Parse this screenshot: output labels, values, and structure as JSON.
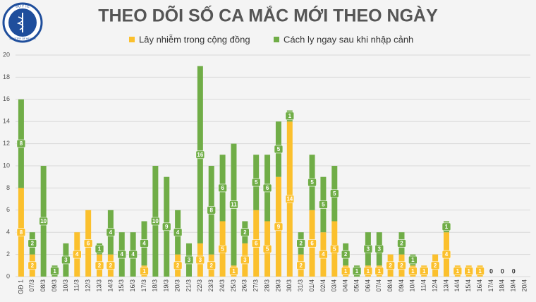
{
  "logo": {
    "top": "BỘ Y TẾ",
    "bottom": "MINISTRY OF HEALTH"
  },
  "chart_data": {
    "type": "stacked-bar",
    "title": "THEO DÕI SỐ CA MẮC MỚI THEO NGÀY",
    "categories": [
      "GĐ 1",
      "07/3",
      "08/3",
      "09/3",
      "10/3",
      "11/3",
      "12/3",
      "13/3",
      "14/3",
      "15/3",
      "16/3",
      "17/3",
      "18/3",
      "19/3",
      "20/3",
      "21/3",
      "22/3",
      "23/3",
      "24/3",
      "25/3",
      "26/3",
      "27/3",
      "28/3",
      "29/3",
      "30/3",
      "31/3",
      "01/4",
      "02/4",
      "03/4",
      "04/4",
      "05/4",
      "06/4",
      "07/4",
      "08/4",
      "09/4",
      "10/4",
      "11/4",
      "12/4",
      "13/4",
      "14/4",
      "15/4",
      "16/4",
      "17/4",
      "18/4",
      "19/4",
      "20/4"
    ],
    "series": [
      {
        "name": "Lây nhiễm trong cộng đồng",
        "color": "#fbc02d",
        "values": [
          8,
          2,
          null,
          null,
          null,
          4,
          6,
          2,
          2,
          null,
          null,
          1,
          null,
          null,
          2,
          null,
          3,
          2,
          5,
          1,
          3,
          6,
          5,
          9,
          14,
          2,
          6,
          4,
          5,
          1,
          null,
          1,
          1,
          2,
          2,
          1,
          1,
          2,
          4,
          1,
          1,
          1,
          0,
          0,
          0,
          null
        ]
      },
      {
        "name": "Cách ly ngay sau khi nhập cảnh",
        "color": "#70ad47",
        "values": [
          8,
          2,
          10,
          1,
          3,
          null,
          null,
          1,
          4,
          4,
          4,
          4,
          10,
          9,
          4,
          3,
          16,
          8,
          6,
          11,
          2,
          5,
          6,
          5,
          1,
          2,
          5,
          5,
          5,
          2,
          1,
          3,
          3,
          null,
          2,
          1,
          null,
          null,
          1,
          null,
          null,
          null,
          null,
          null,
          null,
          null
        ]
      }
    ],
    "ylim": [
      0,
      20
    ],
    "yticks": [
      0,
      2,
      4,
      6,
      8,
      10,
      12,
      14,
      16,
      18,
      20
    ],
    "grid": true
  }
}
